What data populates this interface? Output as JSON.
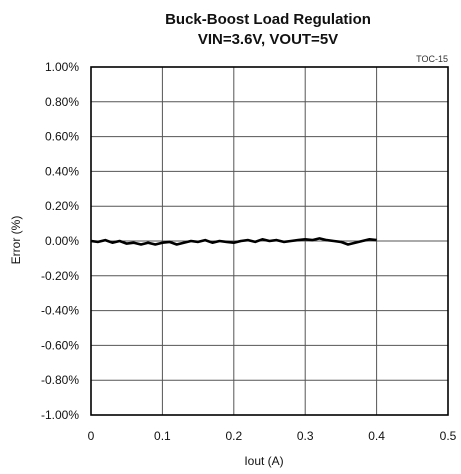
{
  "chart_data": {
    "type": "line",
    "title": "Buck-Boost Load Regulation",
    "subtitle": "VIN=3.6V, VOUT=5V",
    "figure_tag": "TOC-15",
    "xlabel": "Iout (A)",
    "ylabel": "Error (%)",
    "xlim": [
      0,
      0.5
    ],
    "ylim": [
      -1.0,
      1.0
    ],
    "x_ticks": [
      0,
      0.1,
      0.2,
      0.3,
      0.4,
      0.5
    ],
    "x_tick_labels": [
      "0",
      "0.1",
      "0.2",
      "0.3",
      "0.4",
      "0.5"
    ],
    "y_ticks": [
      1.0,
      0.8,
      0.6,
      0.4,
      0.2,
      0.0,
      -0.2,
      -0.4,
      -0.6,
      -0.8,
      -1.0
    ],
    "y_tick_labels": [
      "1.00%",
      "0.80%",
      "0.60%",
      "0.40%",
      "0.20%",
      "0.00%",
      "-0.20%",
      "-0.40%",
      "-0.60%",
      "-0.80%",
      "-1.00%"
    ],
    "grid": true,
    "line_color": "#000000",
    "series": [
      {
        "x": [
          0.0,
          0.01,
          0.02,
          0.03,
          0.04,
          0.05,
          0.06,
          0.07,
          0.08,
          0.09,
          0.1,
          0.11,
          0.12,
          0.13,
          0.14,
          0.15,
          0.16,
          0.17,
          0.18,
          0.19,
          0.2,
          0.21,
          0.22,
          0.23,
          0.24,
          0.25,
          0.26,
          0.27,
          0.28,
          0.29,
          0.3,
          0.31,
          0.32,
          0.33,
          0.34,
          0.35,
          0.36,
          0.37,
          0.38,
          0.39,
          0.4
        ],
        "y": [
          0.0,
          -0.005,
          0.005,
          -0.01,
          0.0,
          -0.015,
          -0.01,
          -0.02,
          -0.01,
          -0.02,
          -0.01,
          -0.005,
          -0.02,
          -0.01,
          0.0,
          -0.005,
          0.005,
          -0.01,
          0.0,
          -0.005,
          -0.01,
          0.0,
          0.005,
          -0.005,
          0.01,
          0.0,
          0.005,
          -0.005,
          0.0,
          0.005,
          0.01,
          0.005,
          0.015,
          0.005,
          0.0,
          -0.005,
          -0.02,
          -0.01,
          0.0,
          0.01,
          0.005
        ]
      }
    ]
  }
}
